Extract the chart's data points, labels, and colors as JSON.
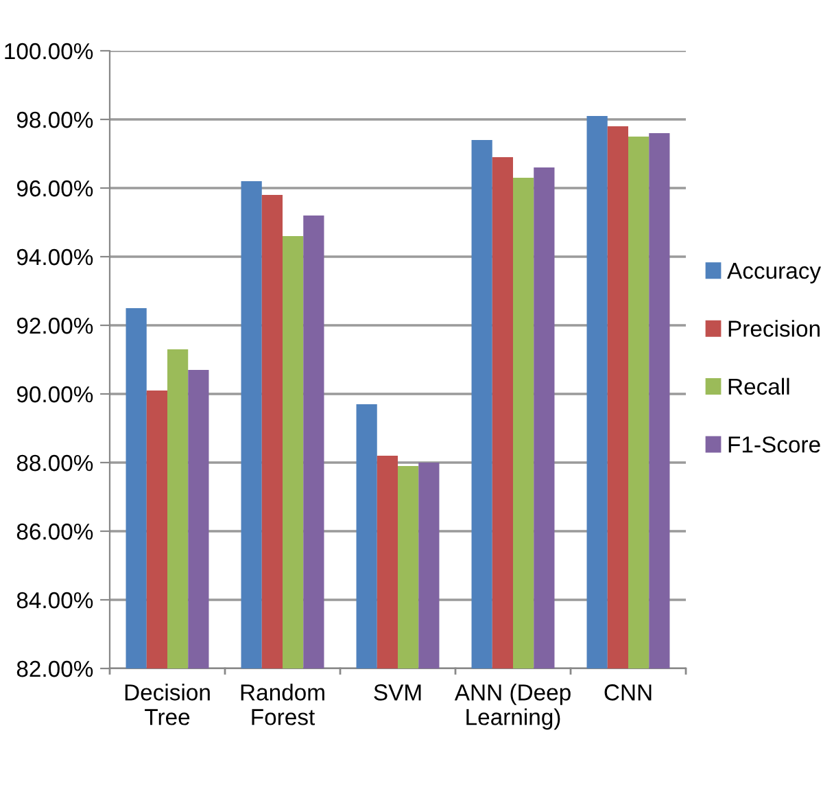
{
  "chart_data": {
    "type": "bar",
    "categories": [
      "Decision\nTree",
      "Random\nForest",
      "SVM",
      "ANN (Deep\nLearning)",
      "CNN"
    ],
    "series": [
      {
        "name": "Accuracy",
        "color": "#4f81bd",
        "values": [
          92.5,
          96.2,
          89.7,
          97.4,
          98.1
        ]
      },
      {
        "name": "Precision",
        "color": "#c0504d",
        "values": [
          90.1,
          95.8,
          88.2,
          96.9,
          97.8
        ]
      },
      {
        "name": "Recall",
        "color": "#9bbb59",
        "values": [
          91.3,
          94.6,
          87.9,
          96.3,
          97.5
        ]
      },
      {
        "name": "F1-Score",
        "color": "#8064a2",
        "values": [
          90.7,
          95.2,
          88.0,
          96.6,
          97.6
        ]
      }
    ],
    "ylim": [
      82,
      100
    ],
    "yticks": [
      {
        "value": 82,
        "label": "82.00%"
      },
      {
        "value": 84,
        "label": "84.00%"
      },
      {
        "value": 86,
        "label": "86.00%"
      },
      {
        "value": 88,
        "label": "88.00%"
      },
      {
        "value": 90,
        "label": "90.00%"
      },
      {
        "value": 92,
        "label": "92.00%"
      },
      {
        "value": 94,
        "label": "94.00%"
      },
      {
        "value": 96,
        "label": "96.00%"
      },
      {
        "value": 98,
        "label": "98.00%"
      },
      {
        "value": 100,
        "label": "100.00%"
      }
    ],
    "grid": "y",
    "legend": "right"
  }
}
